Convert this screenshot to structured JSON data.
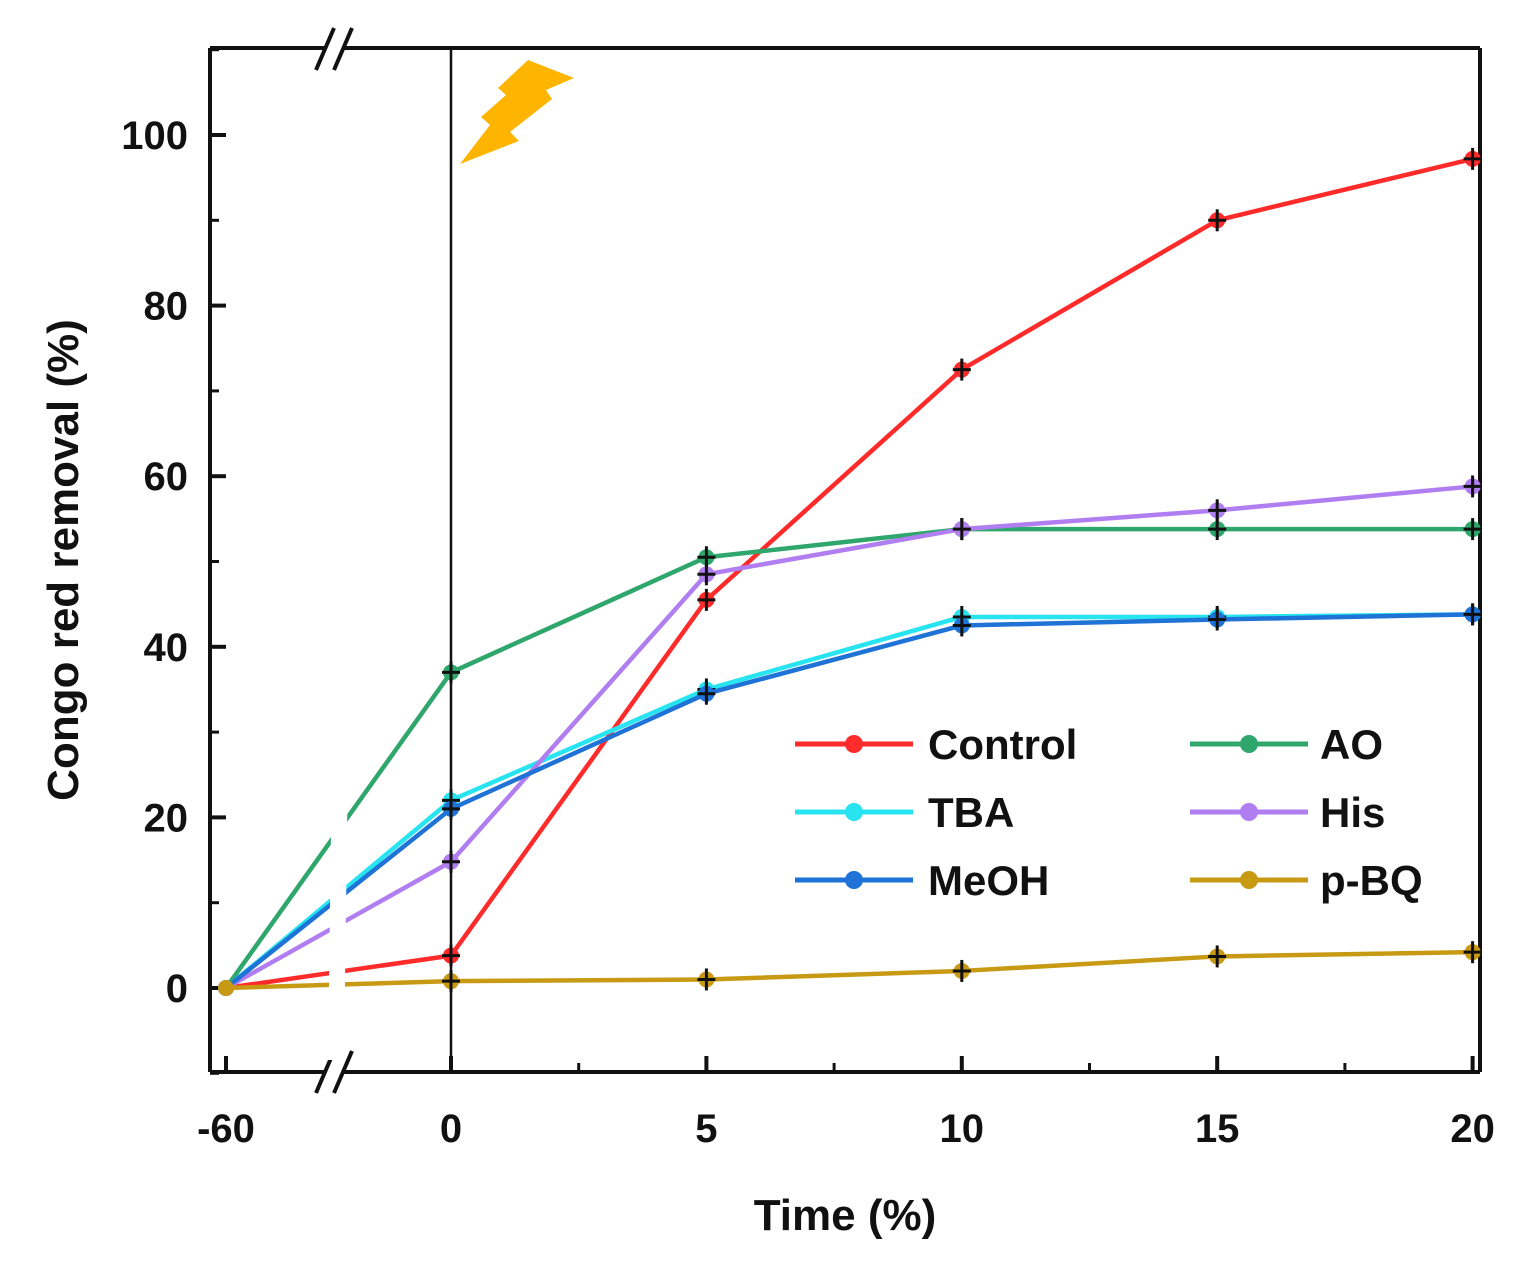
{
  "chart_data": {
    "type": "line",
    "title": "",
    "xlabel": "Time (%)",
    "ylabel": "Congo red removal (%)",
    "x": [
      -60,
      0,
      5,
      10,
      15,
      20
    ],
    "x_tick_labels": [
      "-60",
      "0",
      "5",
      "10",
      "15",
      "20"
    ],
    "y_ticks": [
      0,
      20,
      40,
      60,
      80,
      100
    ],
    "y_tick_labels": [
      "0",
      "20",
      "40",
      "60",
      "80",
      "100"
    ],
    "ylim": [
      -10,
      110
    ],
    "xlim_main": [
      0,
      20
    ],
    "axis_break": "between -60 and 0",
    "grid": false,
    "legend_position": "lower-right",
    "series": [
      {
        "name": "Control",
        "color": "#ff2a2a",
        "values": [
          0,
          3.8,
          45.5,
          72.5,
          90,
          97.2
        ]
      },
      {
        "name": "AO",
        "color": "#2ea66c",
        "values": [
          0,
          37,
          50.5,
          53.8,
          53.8,
          53.8
        ]
      },
      {
        "name": "TBA",
        "color": "#28e4f0",
        "values": [
          0,
          22,
          35,
          43.5,
          43.5,
          43.8
        ]
      },
      {
        "name": "His",
        "color": "#b07ef0",
        "values": [
          0,
          14.8,
          48.5,
          53.8,
          56,
          58.8
        ]
      },
      {
        "name": "MeOH",
        "color": "#1f72d6",
        "values": [
          0,
          21,
          34.5,
          42.5,
          43.2,
          43.8
        ]
      },
      {
        "name": "p-BQ",
        "color": "#c89a14",
        "values": [
          0,
          0.8,
          1,
          2,
          3.7,
          4.2
        ]
      }
    ],
    "annotations": [
      "lightning-icon"
    ]
  }
}
